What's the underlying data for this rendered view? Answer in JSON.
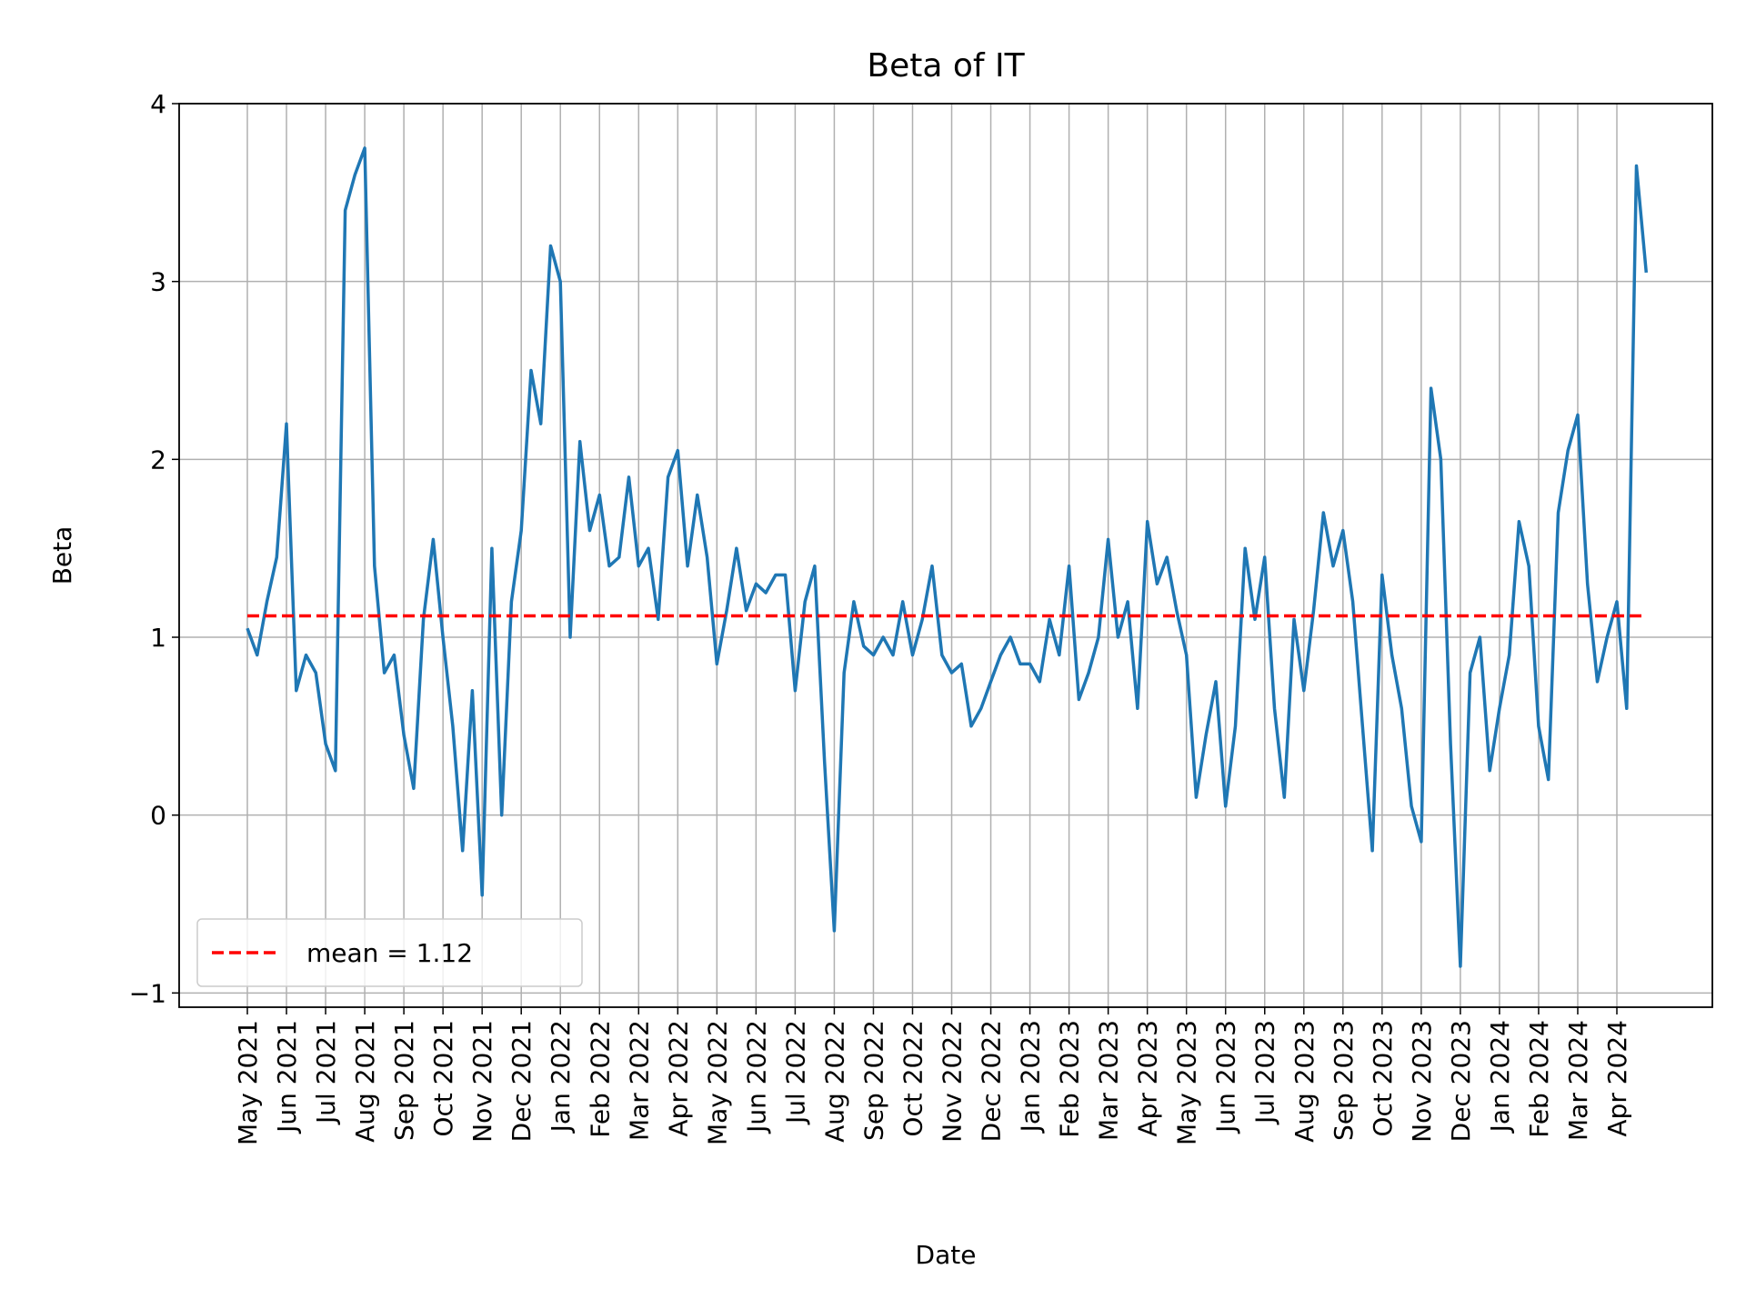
{
  "chart_data": {
    "type": "line",
    "title": "Beta of IT",
    "xlabel": "Date",
    "ylabel": "Beta",
    "categories": [
      "May 2021",
      "Jun 2021",
      "Jul 2021",
      "Aug 2021",
      "Sep 2021",
      "Oct 2021",
      "Nov 2021",
      "Dec 2021",
      "Jan 2022",
      "Feb 2022",
      "Mar 2022",
      "Apr 2022",
      "May 2022",
      "Jun 2022",
      "Jul 2022",
      "Aug 2022",
      "Sep 2022",
      "Oct 2022",
      "Nov 2022",
      "Dec 2022",
      "Jan 2023",
      "Feb 2023",
      "Mar 2023",
      "Apr 2023",
      "May 2023",
      "Jun 2023",
      "Jul 2023",
      "Aug 2023",
      "Sep 2023",
      "Oct 2023",
      "Nov 2023",
      "Dec 2023",
      "Jan 2024",
      "Feb 2024",
      "Mar 2024",
      "Apr 2024"
    ],
    "series": [
      {
        "name": "Beta",
        "color": "#1f77b4",
        "values": [
          [
            1.05,
            0.9,
            1.2,
            1.45
          ],
          [
            2.2,
            0.7,
            0.9,
            0.8
          ],
          [
            0.4,
            0.25,
            3.4,
            3.6
          ],
          [
            3.75,
            1.4,
            0.8,
            0.9
          ],
          [
            0.45,
            0.15,
            1.1,
            1.55
          ],
          [
            1.0,
            0.5,
            -0.2,
            0.7
          ],
          [
            -0.45,
            1.5,
            0.0,
            1.2
          ],
          [
            1.6,
            2.5,
            2.2,
            3.2
          ],
          [
            3.0,
            1.0,
            2.1,
            1.6
          ],
          [
            1.8,
            1.4,
            1.45,
            1.9
          ],
          [
            1.4,
            1.5,
            1.1,
            1.9
          ],
          [
            2.05,
            1.4,
            1.8,
            1.45
          ],
          [
            0.85,
            1.15,
            1.5,
            1.15
          ],
          [
            1.3,
            1.25,
            1.35,
            1.35
          ],
          [
            0.7,
            1.2,
            1.4,
            0.3
          ],
          [
            -0.65,
            0.8,
            1.2,
            0.95
          ],
          [
            0.9,
            1.0,
            0.9,
            1.2
          ],
          [
            0.9,
            1.1,
            1.4,
            0.9
          ],
          [
            0.8,
            0.85,
            0.5,
            0.6
          ],
          [
            0.75,
            0.9,
            1.0,
            0.85
          ],
          [
            0.85,
            0.75,
            1.1,
            0.9
          ],
          [
            1.4,
            0.65,
            0.8,
            1.0
          ],
          [
            1.55,
            1.0,
            1.2,
            0.6
          ],
          [
            1.65,
            1.3,
            1.45,
            1.15
          ],
          [
            0.9,
            0.1,
            0.45,
            0.75
          ],
          [
            0.05,
            0.5,
            1.5,
            1.1
          ],
          [
            1.45,
            0.6,
            0.1,
            1.1
          ],
          [
            0.7,
            1.15,
            1.7,
            1.4
          ],
          [
            1.6,
            1.2,
            0.5,
            -0.2
          ],
          [
            1.35,
            0.9,
            0.6,
            0.05
          ],
          [
            -0.15,
            2.4,
            2.0,
            0.4
          ],
          [
            -0.85,
            0.8,
            1.0,
            0.25
          ],
          [
            0.6,
            0.9,
            1.65,
            1.4
          ],
          [
            0.5,
            0.2,
            1.7,
            2.05
          ],
          [
            2.25,
            1.3,
            0.75,
            1.0
          ],
          [
            1.2,
            0.6,
            3.65,
            3.05
          ]
        ]
      }
    ],
    "reference_line": {
      "name": "mean = 1.12",
      "value": 1.12,
      "color": "#ff0000",
      "style": "dashed"
    },
    "ylim": [
      -1.08,
      4.0
    ],
    "yticks": [
      {
        "value": -1,
        "label": "−1"
      },
      0,
      1,
      2,
      3,
      4
    ],
    "grid": true,
    "legend": "lower left"
  }
}
